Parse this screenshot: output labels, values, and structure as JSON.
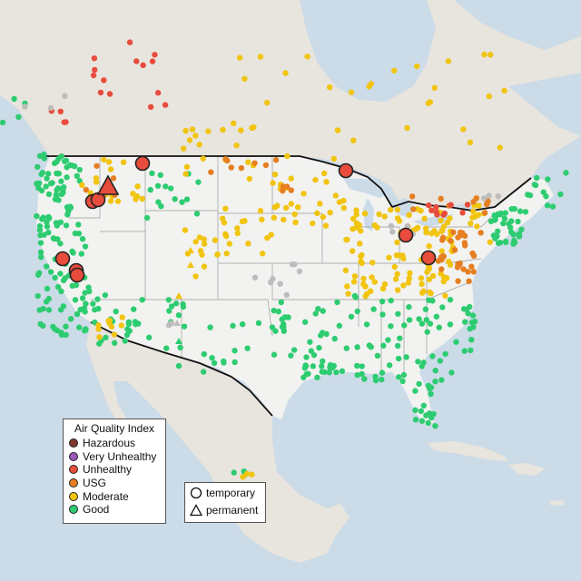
{
  "legend": {
    "title": "Air Quality Index",
    "categories": [
      {
        "label": "Hazardous",
        "color": "#7e3a2f"
      },
      {
        "label": "Very Unhealthy",
        "color": "#9b59b6"
      },
      {
        "label": "Unhealthy",
        "color": "#e74c3c"
      },
      {
        "label": "USG",
        "color": "#e67e22"
      },
      {
        "label": "Moderate",
        "color": "#f1c40f"
      },
      {
        "label": "Good",
        "color": "#2ecc71"
      }
    ]
  },
  "monitor_legend": {
    "temporary": "temporary",
    "permanent": "permanent"
  },
  "colors": {
    "water": "#cbdbe8",
    "land_us": "#efefed",
    "land_other": "#e9e4dc",
    "border": "#111111",
    "state_lines": "#9a9a9a",
    "no_data": "#bdbdbd"
  }
}
